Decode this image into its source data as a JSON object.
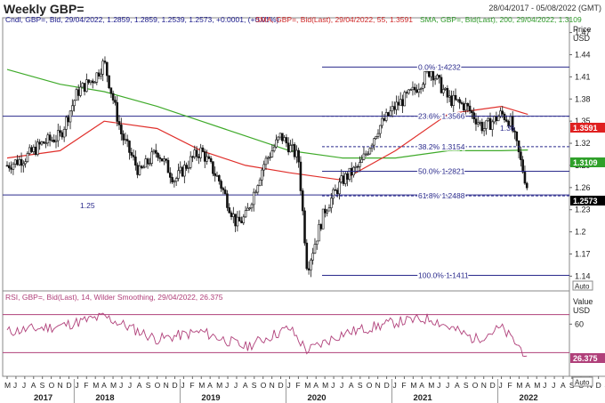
{
  "header": {
    "title": "Weekly GBP=",
    "date_range": "28/04/2017 - 05/08/2022 (GMT)"
  },
  "price_panel": {
    "ohlc_legend": "Cndl, GBP=, Bid, 29/04/2022, 1.2859, 1.2859, 1.2539, 1.2573, +0.0001, (+0.01%)",
    "sma55_legend": "SMA, GBP=, Bid(Last), 29/04/2022, 55, 1.3591",
    "sma200_legend": "SMA, GBP=, Bid(Last), 200, 29/04/2022, 1.3109",
    "axis_title_1": "Price",
    "axis_title_2": "USD",
    "auto_label": "Auto",
    "last_price_tag": "1.2573",
    "sma55_tag": "1.3591",
    "sma200_tag": "1.3109",
    "support_label": "1.25",
    "fib_levels": [
      {
        "label": "0.0% 1.4232",
        "value": 1.4232
      },
      {
        "label": "23.6% 1.3566",
        "value": 1.3566
      },
      {
        "label": "38.2% 1.3154",
        "value": 1.3154
      },
      {
        "label": "50.0% 1.2821",
        "value": 1.2821
      },
      {
        "label": "61.8% 1.2488",
        "value": 1.2488
      },
      {
        "label": "100.0% 1.1411",
        "value": 1.1411
      }
    ],
    "inline_label": "1.36"
  },
  "rsi_panel": {
    "legend": "RSI, GBP=, Bid(Last), 14, Wilder Smoothing, 29/04/2022, 26.375",
    "axis_title": "Value",
    "axis_unit": "USD",
    "auto_label": "Auto",
    "last_tag": "26.375"
  },
  "time_axis": {
    "months": [
      "M",
      "J",
      "J",
      "A",
      "S",
      "O",
      "N",
      "D",
      "J",
      "F",
      "M",
      "A",
      "M",
      "J",
      "J",
      "A",
      "S",
      "O",
      "N",
      "D",
      "J",
      "F",
      "M",
      "A",
      "M",
      "J",
      "J",
      "A",
      "S",
      "O",
      "N",
      "D",
      "J",
      "F",
      "M",
      "A",
      "M",
      "J",
      "J",
      "A",
      "S",
      "O",
      "N",
      "D",
      "J",
      "F",
      "M",
      "A",
      "M",
      "J",
      "J",
      "A",
      "S",
      "O",
      "N",
      "D",
      "J",
      "F",
      "M",
      "A",
      "M",
      "J",
      "J",
      "A",
      "S",
      "O",
      "N",
      "D",
      "J",
      "F",
      "M",
      "A",
      "M",
      "J",
      "J",
      "A"
    ],
    "years": [
      "2017",
      "2018",
      "2019",
      "2020",
      "2021",
      "2022"
    ]
  },
  "colors": {
    "candle": "#111111",
    "sma55": "#e0302c",
    "sma200": "#3faa2a",
    "fib": "#2a2a8c",
    "rsi": "#b0407a",
    "price_tag": "#000000",
    "sma55_tag": "#e02020",
    "sma200_tag": "#2fa02a"
  },
  "chart_data": [
    {
      "type": "candlestick",
      "title": "Weekly GBP=",
      "ylabel": "Price USD",
      "ylim": [
        1.12,
        1.49
      ],
      "y_ticks": [
        "1.47",
        "1.44",
        "1.41",
        "1.38",
        "1.35",
        "1.32",
        "1.29",
        "1.26",
        "1.23",
        "1.2",
        "1.17",
        "1.14"
      ],
      "x_start": "2017-05",
      "x_end": "2022-08",
      "reference_lines": [
        1.3566,
        1.25
      ],
      "series": [
        {
          "name": "GBP= (weekly close)",
          "x": [
            "2017-05",
            "2017-07",
            "2017-09",
            "2017-11",
            "2018-01",
            "2018-03",
            "2018-04",
            "2018-06",
            "2018-08",
            "2018-10",
            "2018-12",
            "2019-02",
            "2019-03",
            "2019-05",
            "2019-07",
            "2019-08",
            "2019-10",
            "2019-12",
            "2020-02",
            "2020-03",
            "2020-05",
            "2020-07",
            "2020-09",
            "2020-11",
            "2021-01",
            "2021-03",
            "2021-05",
            "2021-07",
            "2021-09",
            "2021-11",
            "2022-01",
            "2022-02",
            "2022-04"
          ],
          "values": [
            1.29,
            1.3,
            1.32,
            1.33,
            1.39,
            1.41,
            1.43,
            1.33,
            1.28,
            1.31,
            1.27,
            1.3,
            1.31,
            1.27,
            1.21,
            1.22,
            1.29,
            1.33,
            1.3,
            1.15,
            1.23,
            1.27,
            1.29,
            1.34,
            1.37,
            1.39,
            1.42,
            1.38,
            1.37,
            1.34,
            1.36,
            1.35,
            1.2573
          ]
        },
        {
          "name": "SMA 55",
          "x": [
            "2017-05",
            "2017-11",
            "2018-04",
            "2018-10",
            "2019-03",
            "2019-08",
            "2020-01",
            "2020-07",
            "2021-01",
            "2021-07",
            "2022-01",
            "2022-04"
          ],
          "values": [
            1.3,
            1.31,
            1.35,
            1.34,
            1.31,
            1.29,
            1.28,
            1.27,
            1.31,
            1.36,
            1.37,
            1.3591
          ]
        },
        {
          "name": "SMA 200",
          "x": [
            "2017-05",
            "2017-11",
            "2018-04",
            "2018-10",
            "2019-03",
            "2019-08",
            "2020-01",
            "2020-07",
            "2021-01",
            "2021-07",
            "2022-01",
            "2022-04"
          ],
          "values": [
            1.42,
            1.4,
            1.39,
            1.37,
            1.35,
            1.33,
            1.31,
            1.3,
            1.3,
            1.31,
            1.31,
            1.3109
          ]
        }
      ]
    },
    {
      "type": "line",
      "title": "RSI 14",
      "ylabel": "Value",
      "y_ticks": [
        "60"
      ],
      "reference_lines": [
        70,
        30
      ],
      "series": [
        {
          "name": "RSI",
          "x": [
            "2017-05",
            "2017-11",
            "2018-04",
            "2018-10",
            "2019-03",
            "2019-08",
            "2020-01",
            "2020-03",
            "2020-07",
            "2021-01",
            "2021-05",
            "2021-10",
            "2022-01",
            "2022-04"
          ],
          "values": [
            52,
            58,
            68,
            44,
            52,
            36,
            56,
            32,
            50,
            62,
            66,
            44,
            56,
            26.375
          ]
        }
      ]
    }
  ]
}
